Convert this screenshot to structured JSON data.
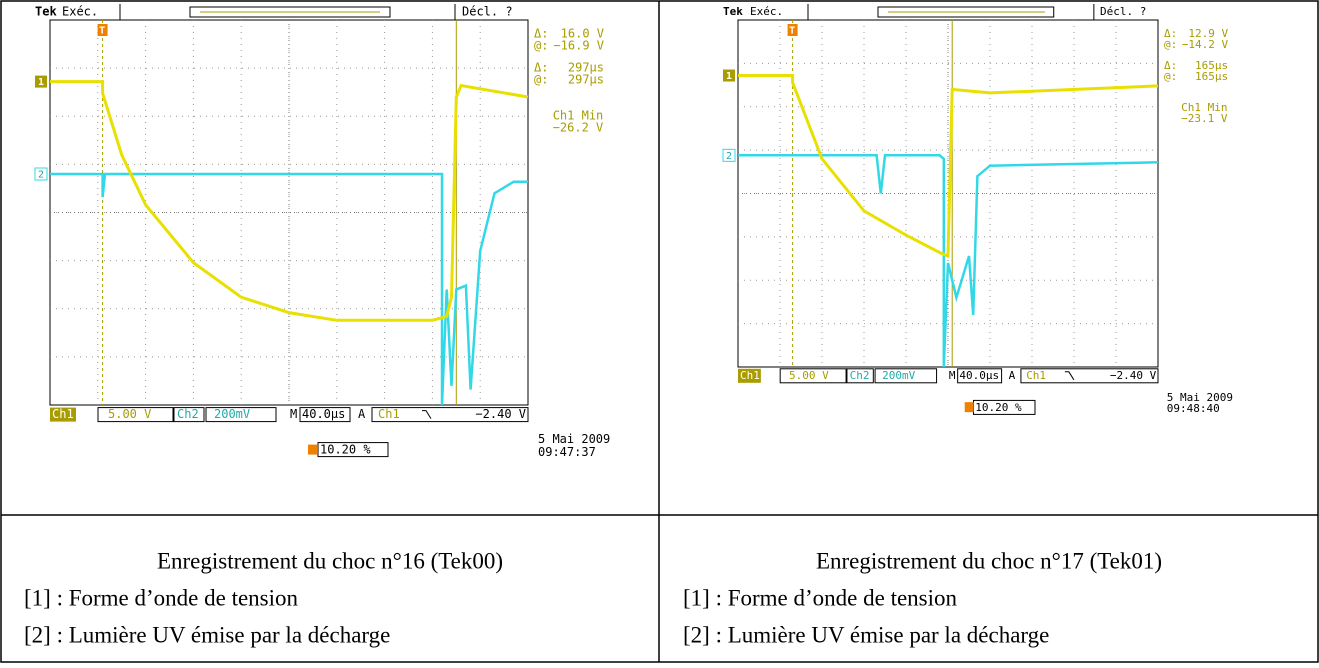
{
  "panels": [
    {
      "scope": {
        "brand": "Tek",
        "run": "Exéc.",
        "trigger_state": "Décl. ?",
        "ch1_marker": "1",
        "ch2_marker": "2",
        "trigger_marker": "T",
        "readouts": [
          [
            "Δ:",
            "16.0 V"
          ],
          [
            "@:",
            "−16.9 V"
          ],
          [
            "Δ:",
            "297µs"
          ],
          [
            "@:",
            "297µs"
          ]
        ],
        "min_label": "Ch1 Min",
        "min_value": "−26.2 V",
        "ch1_label": "Ch1",
        "ch1_scale": "5.00 V",
        "ch2_label": "Ch2",
        "ch2_scale": "200mV",
        "timebase_label": "M",
        "timebase": "40.0µs",
        "trigger_mode": "A",
        "trigger_source": "Ch1",
        "trigger_level": "−2.40 V",
        "date": "5 Mai  2009",
        "time": "09:47:37",
        "trigger_position": "10.20 %"
      },
      "caption": {
        "title": "Enregistrement du choc n°16 (Tek00)",
        "lines": [
          "[1] : Forme d’onde de tension",
          "[2] : Lumière UV émise par la décharge"
        ]
      }
    },
    {
      "scope": {
        "brand": "Tek",
        "run": "Exéc.",
        "trigger_state": "Décl. ?",
        "ch1_marker": "1",
        "ch2_marker": "2",
        "trigger_marker": "T",
        "readouts": [
          [
            "Δ:",
            "12.9 V"
          ],
          [
            "@:",
            "−14.2 V"
          ],
          [
            "Δ:",
            "165µs"
          ],
          [
            "@:",
            "165µs"
          ]
        ],
        "min_label": "Ch1 Min",
        "min_value": "−23.1 V",
        "ch1_label": "Ch1",
        "ch1_scale": "5.00 V",
        "ch2_label": "Ch2",
        "ch2_scale": "200mV",
        "timebase_label": "M",
        "timebase": "40.0µs",
        "trigger_mode": "A",
        "trigger_source": "Ch1",
        "trigger_level": "−2.40 V",
        "date": "5 Mai  2009",
        "time": "09:48:40",
        "trigger_position": "10.20 %"
      },
      "caption": {
        "title": "Enregistrement du choc n°17 (Tek01)",
        "lines": [
          "[1] : Forme d’onde de tension",
          "[2] : Lumière UV émise par la décharge"
        ]
      }
    }
  ]
}
